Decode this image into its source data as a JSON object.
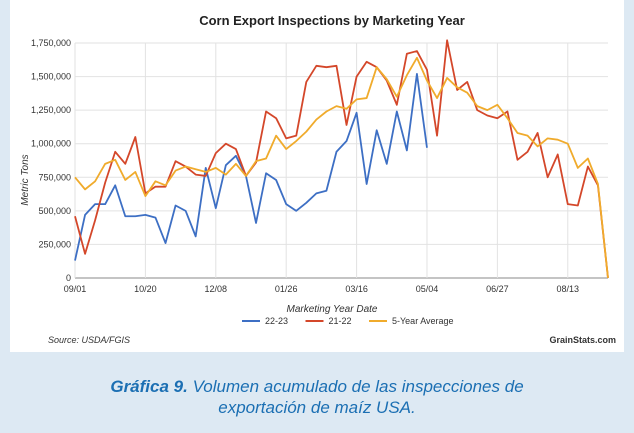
{
  "chart_data": {
    "type": "line",
    "title": "Corn Export Inspections by Marketing Year",
    "xlabel": "Marketing Year Date",
    "ylabel": "Metric Tons",
    "x_tick_labels": [
      "09/01",
      "10/20",
      "12/08",
      "01/26",
      "03/16",
      "05/04",
      "06/27",
      "08/13"
    ],
    "y_tick_labels": [
      "0",
      "250,000",
      "500,000",
      "750,000",
      "1,000,000",
      "1,250,000",
      "1,500,000",
      "1,750,000"
    ],
    "ylim": [
      0,
      1750000
    ],
    "x_range_weeks": [
      0,
      53
    ],
    "grid": true,
    "legend_position": "bottom-center",
    "series": [
      {
        "name": "22-23",
        "color": "#3d6fc4",
        "values": [
          130000,
          470000,
          550000,
          550000,
          690000,
          460000,
          460000,
          470000,
          450000,
          260000,
          540000,
          500000,
          310000,
          820000,
          520000,
          840000,
          910000,
          760000,
          410000,
          780000,
          730000,
          550000,
          500000,
          560000,
          630000,
          650000,
          940000,
          1020000,
          1230000,
          700000,
          1100000,
          850000,
          1240000,
          950000,
          1520000,
          970000
        ]
      },
      {
        "name": "21-22",
        "color": "#d4472a",
        "values": [
          460000,
          180000,
          430000,
          710000,
          940000,
          850000,
          1050000,
          630000,
          680000,
          680000,
          870000,
          830000,
          770000,
          760000,
          930000,
          1000000,
          960000,
          760000,
          860000,
          1240000,
          1190000,
          1040000,
          1060000,
          1460000,
          1580000,
          1570000,
          1580000,
          1140000,
          1500000,
          1610000,
          1570000,
          1470000,
          1290000,
          1670000,
          1690000,
          1550000,
          1060000,
          1770000,
          1400000,
          1460000,
          1250000,
          1210000,
          1190000,
          1240000,
          880000,
          940000,
          1080000,
          750000,
          920000,
          550000,
          540000,
          830000,
          690000,
          0
        ]
      },
      {
        "name": "5-Year Average",
        "color": "#f0ab2c",
        "values": [
          750000,
          660000,
          720000,
          850000,
          880000,
          730000,
          790000,
          610000,
          720000,
          690000,
          800000,
          830000,
          810000,
          790000,
          820000,
          770000,
          850000,
          760000,
          870000,
          890000,
          1060000,
          960000,
          1020000,
          1090000,
          1180000,
          1240000,
          1280000,
          1260000,
          1330000,
          1340000,
          1570000,
          1480000,
          1350000,
          1510000,
          1640000,
          1470000,
          1340000,
          1490000,
          1420000,
          1380000,
          1280000,
          1250000,
          1290000,
          1190000,
          1080000,
          1060000,
          980000,
          1040000,
          1030000,
          1000000,
          820000,
          890000,
          700000,
          0
        ]
      }
    ],
    "source": "Source: USDA/FGIS",
    "credit": "GrainStats.com"
  },
  "caption": {
    "label": "Gráfica 9.",
    "text_line1": " Volumen acumulado de las inspecciones de",
    "text_line2": "exportación de maíz USA."
  }
}
